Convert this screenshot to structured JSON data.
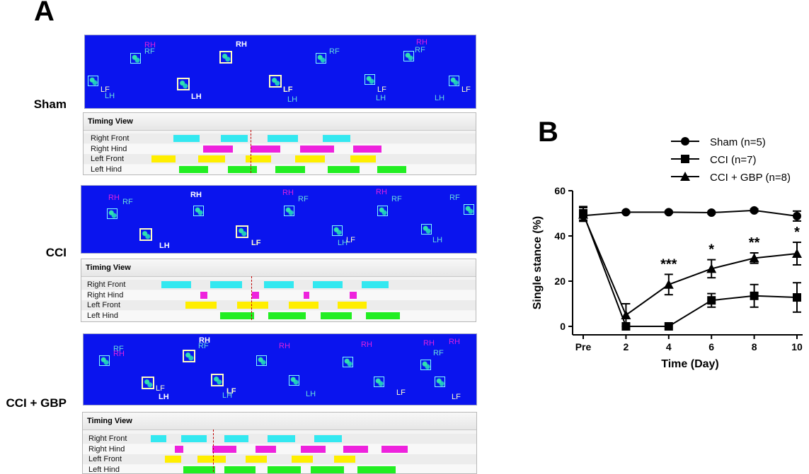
{
  "panel_a_label": "A",
  "panel_b_label": "B",
  "timing_title": "Timing View",
  "timing_rows": [
    "Right Front",
    "Right Hind",
    "Left Front",
    "Left Hind"
  ],
  "row_colors": [
    "#33e8f0",
    "#ee22dd",
    "#ffee00",
    "#22ee22"
  ],
  "paw_labels": {
    "rh": "RH",
    "rf": "RF",
    "lf": "LF",
    "lh": "LH"
  },
  "groups": [
    {
      "name": "Sham"
    },
    {
      "name": "CCI"
    },
    {
      "name": "CCI + GBP"
    }
  ],
  "chart_data": {
    "type": "line",
    "x": [
      "Pre",
      "2",
      "4",
      "6",
      "8",
      "10"
    ],
    "xlabel": "Time (Day)",
    "ylabel": "Single stance (%)",
    "ylim": [
      0,
      60
    ],
    "yticks": [
      "0",
      "20",
      "40",
      "60"
    ],
    "legend_position": "top-right",
    "series": [
      {
        "name": "Sham (n=5)",
        "marker": "circle",
        "values": [
          49,
          50.5,
          50.5,
          50.3,
          51.3,
          48.8
        ],
        "errors": [
          2.5,
          0.5,
          0.5,
          0.5,
          0.6,
          2.2
        ]
      },
      {
        "name": "CCI (n=7)",
        "marker": "square",
        "values": [
          50,
          0,
          0,
          11.5,
          13.5,
          12.8
        ],
        "errors": [
          3,
          0,
          0,
          3,
          5,
          6.5
        ]
      },
      {
        "name": "CCI + GBP (n=8)",
        "marker": "triangle",
        "values": [
          49.5,
          5,
          18.5,
          25.5,
          30.2,
          32.2
        ],
        "errors": [
          3,
          5,
          4.5,
          4,
          2.3,
          5
        ]
      }
    ],
    "annotations": [
      {
        "x": "4",
        "text": "***"
      },
      {
        "x": "6",
        "text": "*"
      },
      {
        "x": "8",
        "text": "**"
      },
      {
        "x": "10",
        "text": "*"
      }
    ]
  }
}
